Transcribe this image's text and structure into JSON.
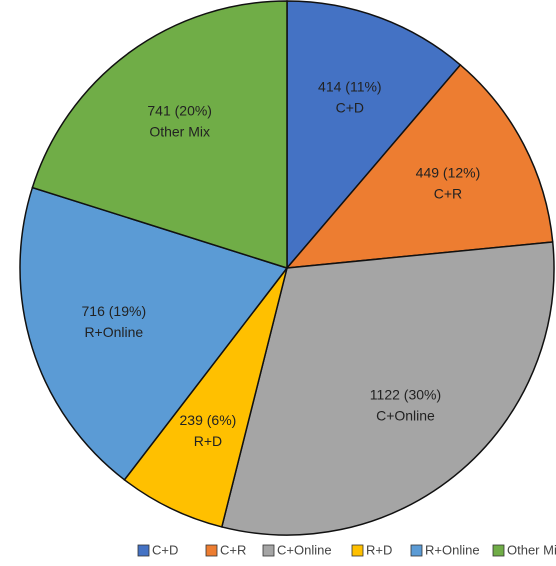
{
  "chart_data": {
    "type": "pie",
    "categories": [
      "C+D",
      "C+R",
      "C+Online",
      "R+D",
      "R+Online",
      "Other Mix"
    ],
    "values": [
      414,
      449,
      1122,
      239,
      716,
      741
    ],
    "value_labels": [
      "414 (11%)",
      "449 (12%)",
      "1122 (30%)",
      "239 (6%)",
      "716 (19%)",
      "741 (20%)"
    ],
    "colors": [
      "#4472c4",
      "#ed7d31",
      "#a5a5a5",
      "#ffc000",
      "#5b9bd5",
      "#70ad47"
    ],
    "legend": "bottom"
  }
}
